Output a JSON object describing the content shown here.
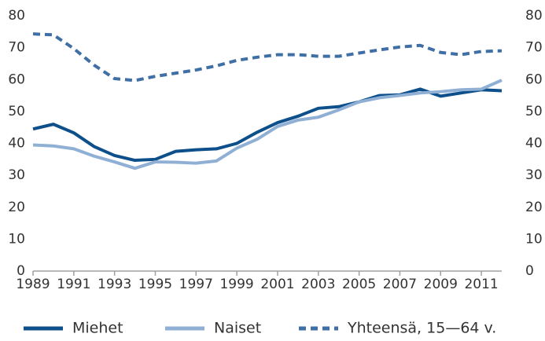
{
  "chart_data": {
    "type": "line",
    "x": [
      1989,
      1990,
      1991,
      1992,
      1993,
      1994,
      1995,
      1996,
      1997,
      1998,
      1999,
      2000,
      2001,
      2002,
      2003,
      2004,
      2005,
      2006,
      2007,
      2008,
      2009,
      2010,
      2011,
      2012
    ],
    "series": [
      {
        "name": "Miehet",
        "color": "#0d4f8b",
        "line_style": "solid",
        "values": [
          44.5,
          46,
          43.3,
          39,
          36.2,
          34.7,
          35,
          37.5,
          38,
          38.3,
          40,
          43.5,
          46.5,
          48.5,
          51,
          51.5,
          53,
          55,
          55.2,
          57,
          54.8,
          55.8,
          56.8,
          56.5
        ]
      },
      {
        "name": "Naiset",
        "color": "#8fb0d4",
        "line_style": "solid",
        "values": [
          39.5,
          39.2,
          38.3,
          36,
          34.2,
          32.2,
          34.2,
          34.1,
          33.8,
          34.5,
          38.5,
          41.3,
          45.3,
          47.3,
          48.2,
          50.5,
          53,
          54.3,
          55,
          55.8,
          56.2,
          56.8,
          57,
          59.8
        ]
      },
      {
        "name": "Yhteensä, 15—64 v.",
        "color": "#3f6fa4",
        "line_style": "dashed",
        "values": [
          74.3,
          74,
          69.7,
          64.5,
          60.3,
          59.7,
          61,
          62,
          63,
          64.3,
          66,
          67,
          67.8,
          67.8,
          67.3,
          67.3,
          68.3,
          69.3,
          70.2,
          70.7,
          68.5,
          67.8,
          68.8,
          69
        ]
      }
    ],
    "xlim": [
      1989,
      2012
    ],
    "xticks": [
      1989,
      1991,
      1993,
      1995,
      1997,
      1999,
      2001,
      2003,
      2005,
      2007,
      2009,
      2011
    ],
    "ylim": [
      0,
      80
    ],
    "yticks": [
      0,
      10,
      20,
      30,
      40,
      50,
      60,
      70,
      80
    ],
    "y2lim": [
      0,
      80
    ],
    "y2ticks": [
      0,
      10,
      20,
      30,
      40,
      50,
      60,
      70,
      80
    ],
    "legend": "bottom"
  }
}
